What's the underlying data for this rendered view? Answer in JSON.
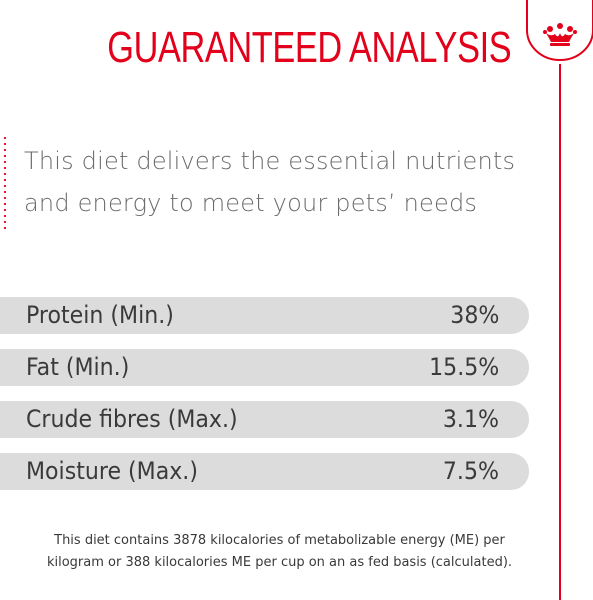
{
  "header": {
    "title": "GUARANTEED ANALYSIS"
  },
  "brand": {
    "badge_icon": "crown-icon",
    "accent_color": "#e2001a"
  },
  "intro": {
    "line1": "This diet delivers the essential nutrients",
    "line2": "and energy to meet your pets’ needs"
  },
  "analysis": {
    "rows": [
      {
        "label": "Protein (Min.)",
        "value": "38%"
      },
      {
        "label": "Fat (Min.)",
        "value": "15.5%"
      },
      {
        "label": "Crude fibres (Max.)",
        "value": "3.1%"
      },
      {
        "label": "Moisture (Max.)",
        "value": "7.5%"
      }
    ]
  },
  "footnote": {
    "line1": "This diet contains 3878 kilocalories of metabolizable energy (ME) per",
    "line2": "kilogram or 388 kilocalories ME per cup on an as fed basis (calculated)."
  }
}
